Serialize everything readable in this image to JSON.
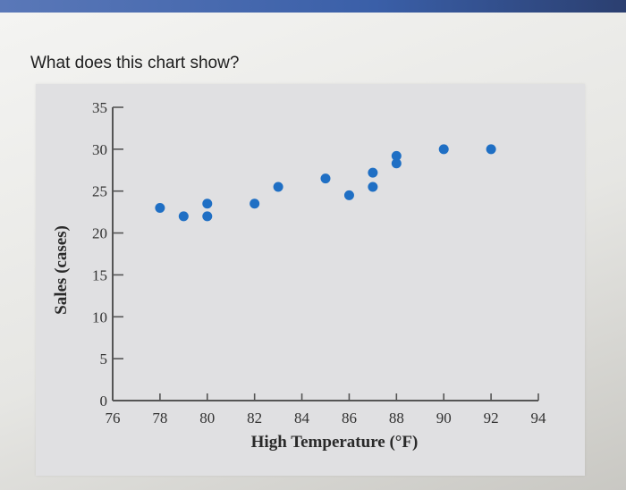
{
  "question": "What does this chart show?",
  "chart_data": {
    "type": "scatter",
    "xlabel": "High Temperature (°F)",
    "ylabel": "Sales (cases)",
    "xlim": [
      76,
      94
    ],
    "ylim": [
      0,
      35
    ],
    "x_ticks": [
      76,
      78,
      80,
      82,
      84,
      86,
      88,
      90,
      92,
      94
    ],
    "y_ticks": [
      0,
      5,
      10,
      15,
      20,
      25,
      30,
      35
    ],
    "grid": false,
    "points": [
      {
        "x": 78,
        "y": 23
      },
      {
        "x": 79,
        "y": 22
      },
      {
        "x": 80,
        "y": 22
      },
      {
        "x": 80,
        "y": 23.5
      },
      {
        "x": 82,
        "y": 23.5
      },
      {
        "x": 83,
        "y": 25.5
      },
      {
        "x": 85,
        "y": 26.5
      },
      {
        "x": 86,
        "y": 24.5
      },
      {
        "x": 87,
        "y": 25.5
      },
      {
        "x": 87,
        "y": 27.2
      },
      {
        "x": 88,
        "y": 28.3
      },
      {
        "x": 88,
        "y": 29.2
      },
      {
        "x": 90,
        "y": 30
      },
      {
        "x": 92,
        "y": 30
      }
    ]
  }
}
